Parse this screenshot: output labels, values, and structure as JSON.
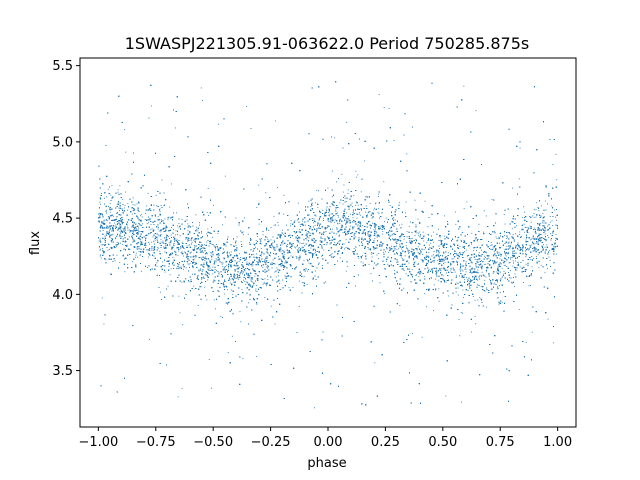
{
  "chart_data": {
    "type": "scatter",
    "title": "1SWASPJ221305.91-063622.0 Period 750285.875s",
    "xlabel": "phase",
    "ylabel": "flux",
    "xlim": [
      -1.08,
      1.08
    ],
    "ylim": [
      3.13,
      5.55
    ],
    "xticks": [
      -1.0,
      -0.75,
      -0.5,
      -0.25,
      0.0,
      0.25,
      0.5,
      0.75,
      1.0
    ],
    "xtick_labels": [
      "−1.00",
      "−0.75",
      "−0.50",
      "−0.25",
      "0.00",
      "0.25",
      "0.50",
      "0.75",
      "1.00"
    ],
    "yticks": [
      3.5,
      4.0,
      4.5,
      5.0,
      5.5
    ],
    "ytick_labels": [
      "3.5",
      "4.0",
      "4.5",
      "5.0",
      "5.5"
    ],
    "grid": false,
    "point_color": "#1f77b4",
    "series": [
      {
        "x_range": [
          -1.0,
          1.0
        ],
        "profile": {
          "phase": [
            -1.0,
            -0.9,
            -0.75,
            -0.6,
            -0.45,
            -0.35,
            -0.25,
            -0.1,
            0.0,
            0.1,
            0.25,
            0.4,
            0.55,
            0.65,
            0.75,
            0.9,
            1.0
          ],
          "flux": [
            4.42,
            4.45,
            4.38,
            4.28,
            4.18,
            4.17,
            4.22,
            4.35,
            4.42,
            4.45,
            4.38,
            4.28,
            4.18,
            4.17,
            4.22,
            4.35,
            4.42
          ]
        },
        "scatter_sigma": 0.12,
        "y_extent": [
          3.25,
          5.42
        ],
        "approx_point_count": 20000
      }
    ]
  }
}
